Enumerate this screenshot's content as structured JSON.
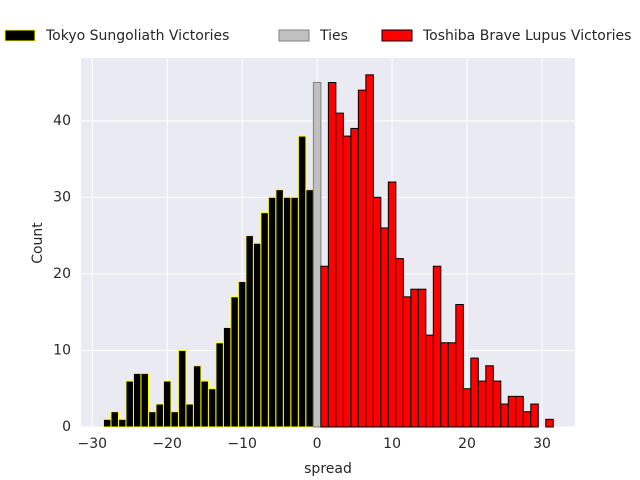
{
  "chart_data": {
    "type": "histogram",
    "xlabel": "spread",
    "ylabel": "Count",
    "xlim": [
      -31.5,
      34.4
    ],
    "ylim": [
      0,
      48.2
    ],
    "xticks": [
      {
        "value": -30,
        "label": "−30"
      },
      {
        "value": -20,
        "label": "−20"
      },
      {
        "value": -10,
        "label": "−10"
      },
      0,
      10,
      20,
      30
    ],
    "yticks": [
      0,
      10,
      20,
      30,
      40
    ],
    "grid": true,
    "legend": "top",
    "series": [
      {
        "name": "Tokyo Sungoliath Victories",
        "color": "#000000",
        "edgecolor": "#ffff00",
        "bins": [
          -28.5,
          -27.5,
          -26.5,
          -25.5,
          -24.5,
          -23.5,
          -22.5,
          -21.5,
          -20.5,
          -19.5,
          -18.5,
          -17.5,
          -16.5,
          -15.5,
          -14.5,
          -13.5,
          -12.5,
          -11.5,
          -10.5,
          -9.5,
          -8.5,
          -7.5,
          -6.5,
          -5.5,
          -4.5,
          -3.5,
          -2.5,
          -1.5,
          -0.5
        ],
        "values": [
          1,
          2,
          1,
          6,
          7,
          7,
          2,
          3,
          6,
          2,
          10,
          3,
          8,
          6,
          5,
          11,
          13,
          17,
          19,
          25,
          24,
          28,
          30,
          31,
          30,
          30,
          38,
          31
        ]
      },
      {
        "name": "Ties",
        "color": "#c0c0c0",
        "edgecolor": "#808080",
        "bins": [
          -0.5,
          0.5
        ],
        "values": [
          45
        ]
      },
      {
        "name": "Toshiba Brave Lupus Victories",
        "color": "#ff0000",
        "edgecolor": "#000000",
        "bins": [
          0.5,
          1.5,
          2.5,
          3.5,
          4.5,
          5.5,
          6.5,
          7.5,
          8.5,
          9.5,
          10.5,
          11.5,
          12.5,
          13.5,
          14.5,
          15.5,
          16.5,
          17.5,
          18.5,
          19.5,
          20.5,
          21.5,
          22.5,
          23.5,
          24.5,
          25.5,
          26.5,
          27.5,
          28.5,
          29.5,
          30.5,
          31.5
        ],
        "values": [
          21,
          45,
          41,
          38,
          39,
          44,
          46,
          30,
          26,
          32,
          22,
          17,
          18,
          18,
          12,
          21,
          11,
          11,
          16,
          5,
          9,
          6,
          8,
          6,
          3,
          4,
          4,
          2,
          3,
          0,
          1
        ]
      }
    ]
  }
}
